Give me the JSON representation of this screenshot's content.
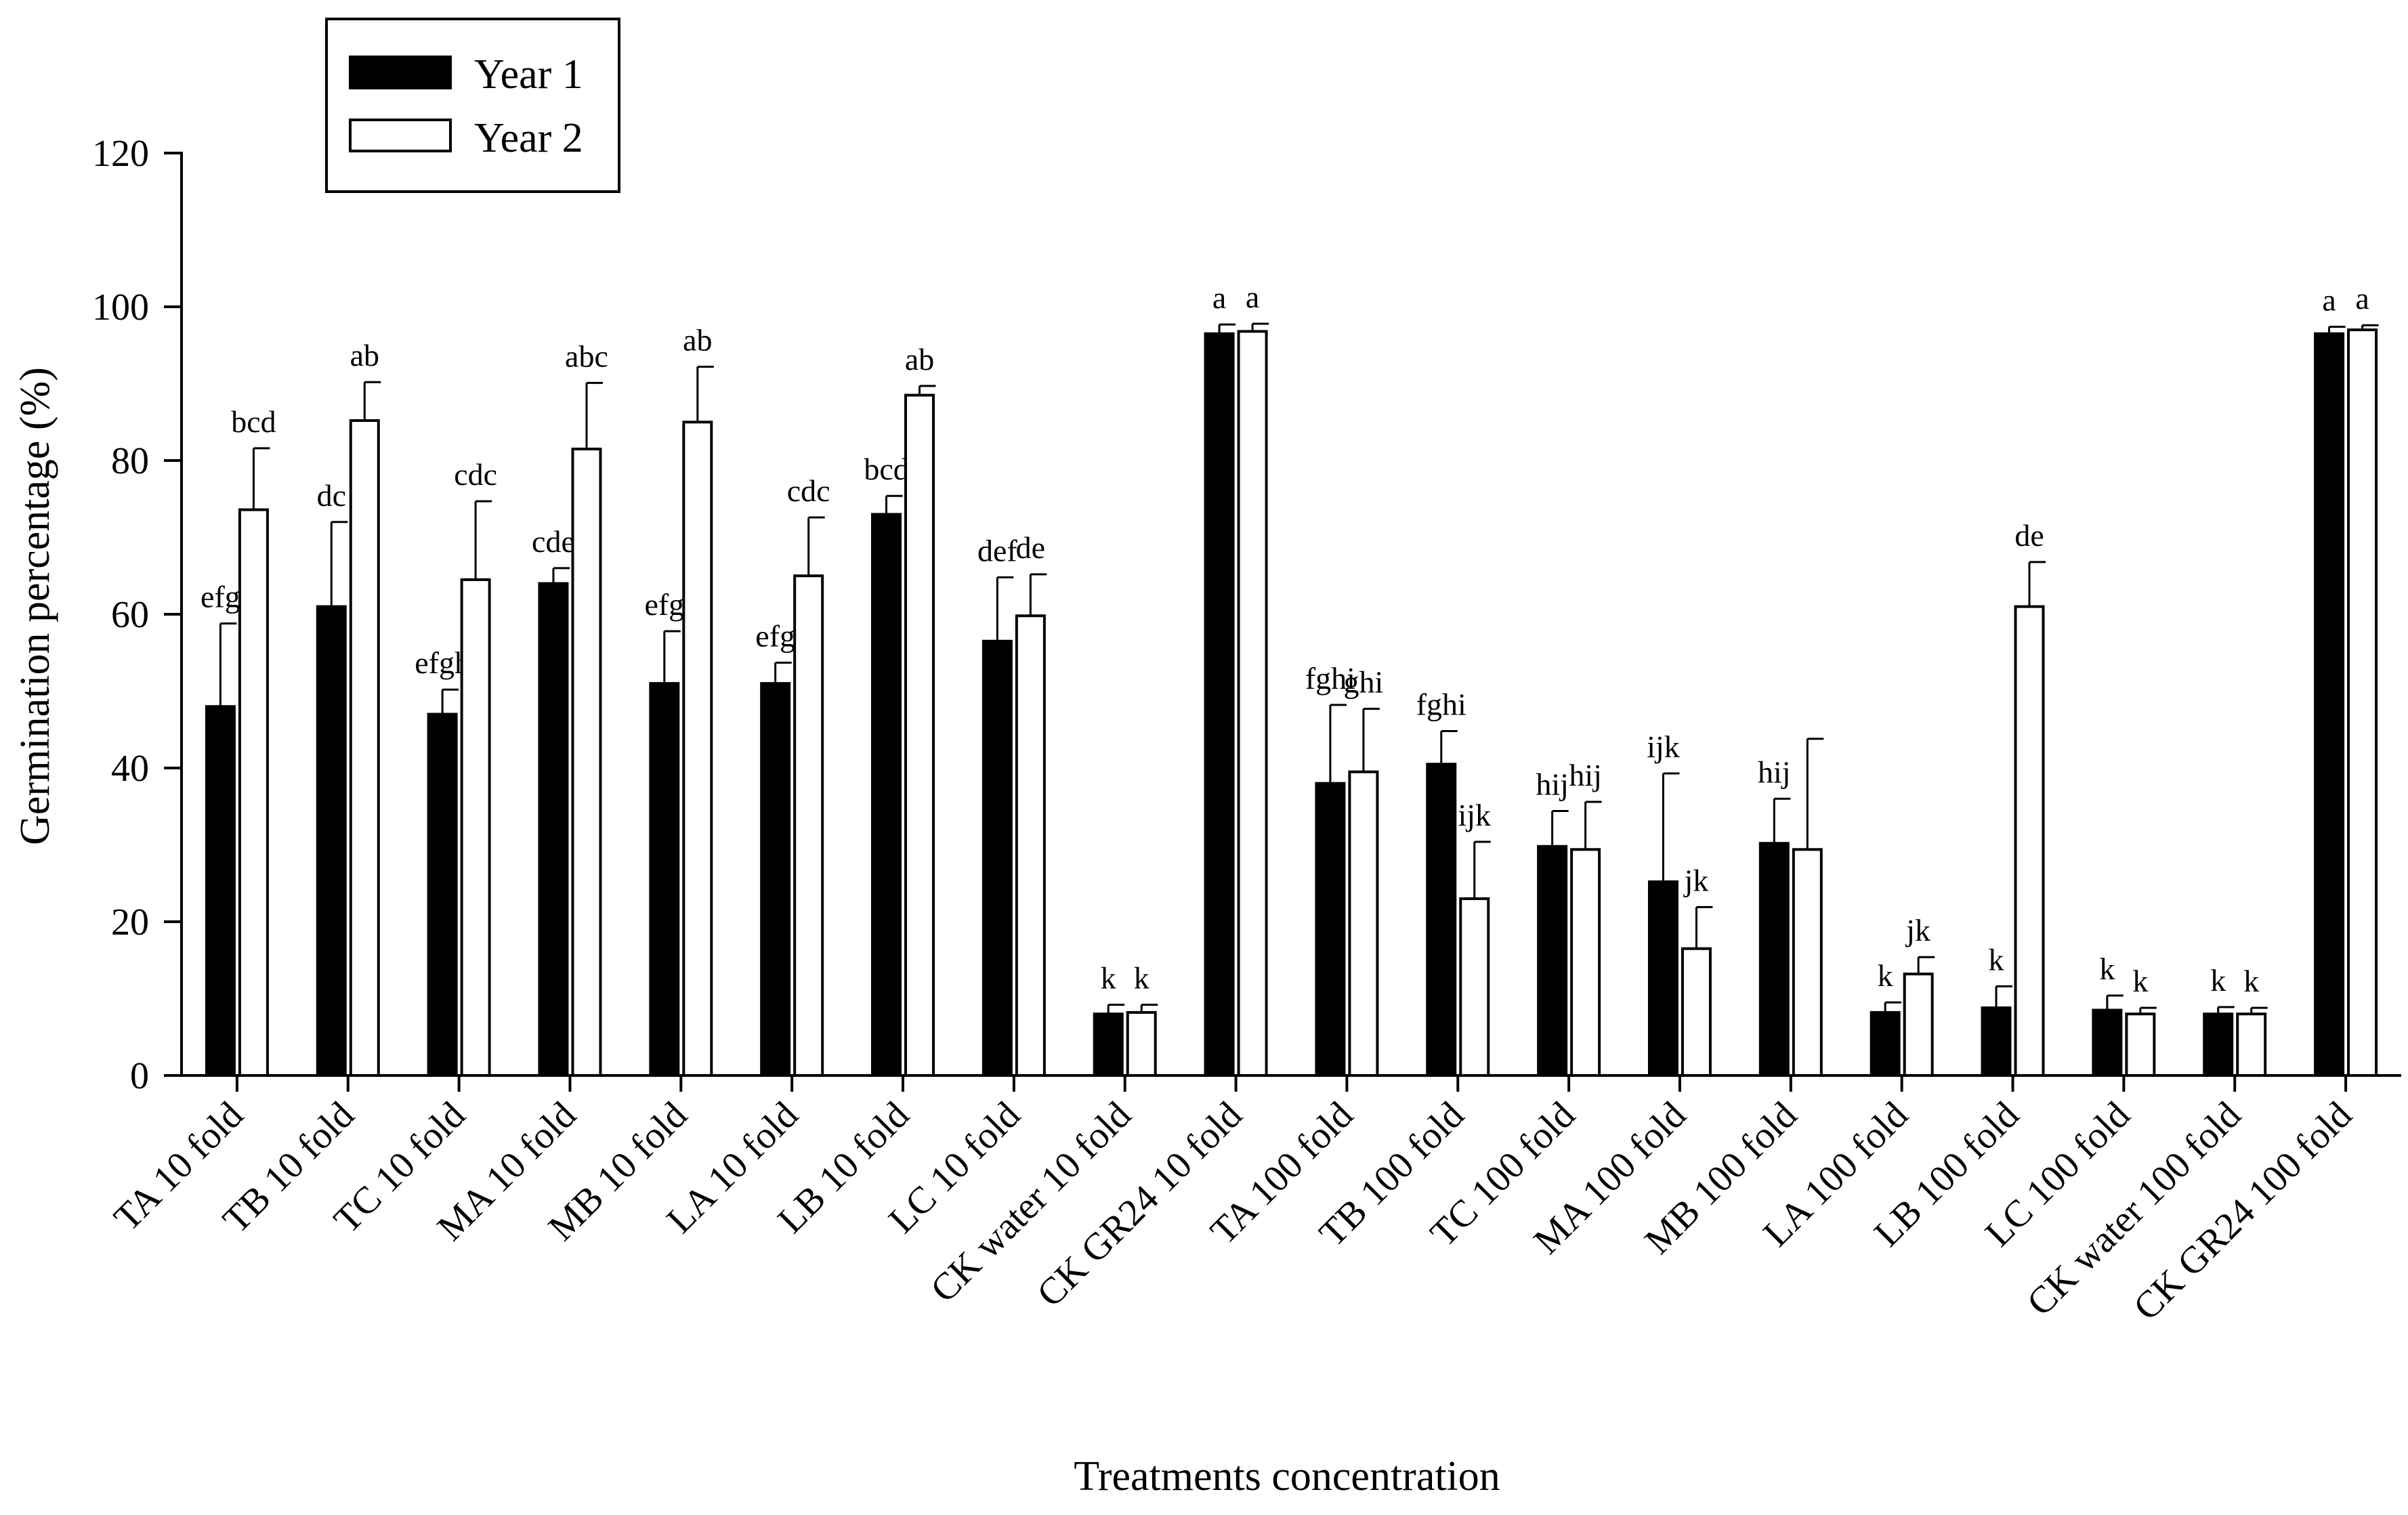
{
  "chart_data": {
    "type": "bar",
    "title": "",
    "xlabel": "Treatments concentration",
    "ylabel": "Germination percentage (%)",
    "ylim": [
      0,
      120
    ],
    "yticks": [
      0,
      20,
      40,
      60,
      80,
      100,
      120
    ],
    "legend_position": "top-left",
    "categories": [
      "TA 10 fold",
      "TB 10 fold",
      "TC 10 fold",
      "MA 10 fold",
      "MB 10 fold",
      "LA 10 fold",
      "LB 10 fold",
      "LC 10 fold",
      "CK water 10 fold",
      "CK GR24 10 fold",
      "TA 100 fold",
      "TB 100 fold",
      "TC 100 fold",
      "MA 100 fold",
      "MB 100 fold",
      "LA 100 fold",
      "LB 100 fold",
      "LC 100 fold",
      "CK water 100 fold",
      "CK GR24 100 fold"
    ],
    "series": [
      {
        "name": "Year 1",
        "color": "#000000",
        "values": [
          48,
          61,
          47,
          64,
          51,
          51,
          73,
          56.5,
          8,
          96.5,
          38,
          40.5,
          29.8,
          25.2,
          30.2,
          8.2,
          8.8,
          8.5,
          8,
          96.5
        ],
        "errors": [
          10.8,
          11,
          3.2,
          2,
          6.8,
          2.7,
          2.4,
          8.3,
          1.2,
          1.2,
          10.2,
          4.3,
          4.6,
          14.1,
          5.8,
          1.3,
          2.8,
          1.9,
          0.9,
          0.9
        ],
        "significance": [
          "efg",
          "dc",
          "efgh",
          "cde",
          "efg",
          "efg",
          "bcd",
          "def",
          "k",
          "a",
          "fghi",
          "fghi",
          "hij",
          "ijk",
          "hij",
          "k",
          "k",
          "k",
          "k",
          "a"
        ]
      },
      {
        "name": "Year 2",
        "color": "#ffffff",
        "values": [
          73.6,
          85.2,
          64.5,
          81.5,
          85,
          65,
          88.5,
          59.8,
          8.2,
          96.8,
          39.5,
          23,
          29.4,
          16.5,
          29.4,
          13.2,
          61,
          8,
          8,
          97
        ],
        "errors": [
          8,
          5,
          10.2,
          8.6,
          7.2,
          7.6,
          1.2,
          5.4,
          1,
          1,
          8.2,
          7.4,
          6.2,
          5.4,
          14.4,
          2.2,
          5.8,
          0.8,
          0.8,
          0.6
        ],
        "significance": [
          "bcd",
          "ab",
          "cdc",
          "abc",
          "ab",
          "cdc",
          "ab",
          "de",
          "k",
          "a",
          "ghi",
          "ijk",
          "hij",
          "jk",
          "",
          "jk",
          "de",
          "k",
          "k",
          "a"
        ]
      }
    ]
  }
}
